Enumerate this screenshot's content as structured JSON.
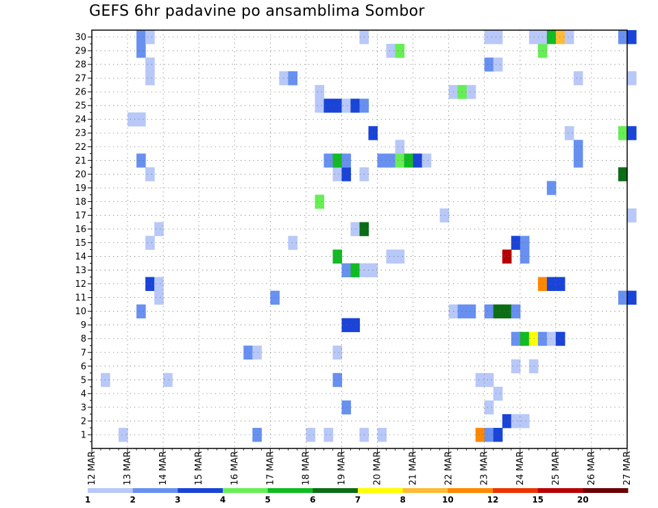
{
  "chart_data": {
    "type": "heatmap",
    "title": "GEFS 6hr padavine po ansamblima Sombor",
    "y_members": [
      1,
      2,
      3,
      4,
      5,
      6,
      7,
      8,
      9,
      10,
      11,
      12,
      13,
      14,
      15,
      16,
      17,
      18,
      19,
      20,
      21,
      22,
      23,
      24,
      25,
      26,
      27,
      28,
      29,
      30
    ],
    "x_ticks": [
      "12 MAR",
      "13 MAR",
      "14 MAR",
      "15 MAR",
      "16 MAR",
      "17 MAR",
      "18 MAR",
      "19 MAR",
      "20 MAR",
      "21 MAR",
      "22 MAR",
      "23 MAR",
      "24 MAR",
      "25 MAR",
      "26 MAR",
      "27 MAR"
    ],
    "x_range_days": [
      12,
      27
    ],
    "grid": true,
    "colorbar": {
      "colors": [
        "#b8c8f8",
        "#6890f0",
        "#1a44d8",
        "#66ee55",
        "#11bb22",
        "#0b6e17",
        "#ffff00",
        "#ffbb33",
        "#ff8800",
        "#ee3300",
        "#b80000",
        "#6a0000"
      ],
      "labels": [
        "1",
        "2",
        "3",
        "4",
        "5",
        "6",
        "7",
        "8",
        "10",
        "12",
        "15",
        "20"
      ]
    },
    "cells": [
      {
        "m": 0,
        "t": 3,
        "v": 1
      },
      {
        "m": 0,
        "t": 18,
        "v": 2
      },
      {
        "m": 0,
        "t": 24,
        "v": 1
      },
      {
        "m": 0,
        "t": 26,
        "v": 1
      },
      {
        "m": 0,
        "t": 30,
        "v": 1
      },
      {
        "m": 0,
        "t": 32,
        "v": 1
      },
      {
        "m": 0,
        "t": 43,
        "v": 10
      },
      {
        "m": 0,
        "t": 44,
        "v": 2
      },
      {
        "m": 0,
        "t": 45,
        "v": 3
      },
      {
        "m": 1,
        "t": 46,
        "v": 3
      },
      {
        "m": 1,
        "t": 47,
        "v": 1
      },
      {
        "m": 1,
        "t": 48,
        "v": 1
      },
      {
        "m": 2,
        "t": 28,
        "v": 2
      },
      {
        "m": 2,
        "t": 44,
        "v": 1
      },
      {
        "m": 3,
        "t": 45,
        "v": 1
      },
      {
        "m": 4,
        "t": 1,
        "v": 1
      },
      {
        "m": 4,
        "t": 8,
        "v": 1
      },
      {
        "m": 4,
        "t": 27,
        "v": 2
      },
      {
        "m": 4,
        "t": 43,
        "v": 1
      },
      {
        "m": 4,
        "t": 44,
        "v": 1
      },
      {
        "m": 5,
        "t": 47,
        "v": 1
      },
      {
        "m": 5,
        "t": 49,
        "v": 1
      },
      {
        "m": 6,
        "t": 17,
        "v": 2
      },
      {
        "m": 6,
        "t": 18,
        "v": 1
      },
      {
        "m": 6,
        "t": 27,
        "v": 1
      },
      {
        "m": 7,
        "t": 47,
        "v": 2
      },
      {
        "m": 7,
        "t": 48,
        "v": 5
      },
      {
        "m": 7,
        "t": 49,
        "v": 7
      },
      {
        "m": 7,
        "t": 50,
        "v": 2
      },
      {
        "m": 7,
        "t": 51,
        "v": 1
      },
      {
        "m": 7,
        "t": 52,
        "v": 3
      },
      {
        "m": 8,
        "t": 28,
        "v": 3
      },
      {
        "m": 8,
        "t": 29,
        "v": 3
      },
      {
        "m": 9,
        "t": 5,
        "v": 2
      },
      {
        "m": 9,
        "t": 40,
        "v": 1
      },
      {
        "m": 9,
        "t": 41,
        "v": 2
      },
      {
        "m": 9,
        "t": 42,
        "v": 2
      },
      {
        "m": 9,
        "t": 44,
        "v": 2
      },
      {
        "m": 9,
        "t": 45,
        "v": 6
      },
      {
        "m": 9,
        "t": 46,
        "v": 6
      },
      {
        "m": 9,
        "t": 47,
        "v": 2
      },
      {
        "m": 10,
        "t": 7,
        "v": 1
      },
      {
        "m": 10,
        "t": 20,
        "v": 2
      },
      {
        "m": 10,
        "t": 59,
        "v": 2
      },
      {
        "m": 10,
        "t": 60,
        "v": 3
      },
      {
        "m": 11,
        "t": 6,
        "v": 3
      },
      {
        "m": 11,
        "t": 7,
        "v": 1
      },
      {
        "m": 11,
        "t": 50,
        "v": 10
      },
      {
        "m": 11,
        "t": 51,
        "v": 3
      },
      {
        "m": 11,
        "t": 52,
        "v": 3
      },
      {
        "m": 12,
        "t": 28,
        "v": 2
      },
      {
        "m": 12,
        "t": 29,
        "v": 5
      },
      {
        "m": 12,
        "t": 30,
        "v": 1
      },
      {
        "m": 12,
        "t": 31,
        "v": 1
      },
      {
        "m": 13,
        "t": 27,
        "v": 5
      },
      {
        "m": 13,
        "t": 33,
        "v": 1
      },
      {
        "m": 13,
        "t": 34,
        "v": 1
      },
      {
        "m": 13,
        "t": 46,
        "v": 15
      },
      {
        "m": 13,
        "t": 48,
        "v": 2
      },
      {
        "m": 14,
        "t": 6,
        "v": 1
      },
      {
        "m": 14,
        "t": 22,
        "v": 1
      },
      {
        "m": 14,
        "t": 47,
        "v": 3
      },
      {
        "m": 14,
        "t": 48,
        "v": 2
      },
      {
        "m": 15,
        "t": 7,
        "v": 1
      },
      {
        "m": 15,
        "t": 29,
        "v": 1
      },
      {
        "m": 15,
        "t": 30,
        "v": 6
      },
      {
        "m": 16,
        "t": 39,
        "v": 1
      },
      {
        "m": 16,
        "t": 60,
        "v": 1
      },
      {
        "m": 17,
        "t": 25,
        "v": 4
      },
      {
        "m": 18,
        "t": 51,
        "v": 2
      },
      {
        "m": 19,
        "t": 6,
        "v": 1
      },
      {
        "m": 19,
        "t": 27,
        "v": 1
      },
      {
        "m": 19,
        "t": 28,
        "v": 3
      },
      {
        "m": 19,
        "t": 30,
        "v": 1
      },
      {
        "m": 19,
        "t": 59,
        "v": 6
      },
      {
        "m": 20,
        "t": 5,
        "v": 2
      },
      {
        "m": 20,
        "t": 26,
        "v": 2
      },
      {
        "m": 20,
        "t": 27,
        "v": 5
      },
      {
        "m": 20,
        "t": 28,
        "v": 2
      },
      {
        "m": 20,
        "t": 32,
        "v": 2
      },
      {
        "m": 20,
        "t": 33,
        "v": 2
      },
      {
        "m": 20,
        "t": 34,
        "v": 4
      },
      {
        "m": 20,
        "t": 35,
        "v": 5
      },
      {
        "m": 20,
        "t": 36,
        "v": 3
      },
      {
        "m": 20,
        "t": 37,
        "v": 1
      },
      {
        "m": 20,
        "t": 54,
        "v": 2
      },
      {
        "m": 21,
        "t": 34,
        "v": 1
      },
      {
        "m": 21,
        "t": 54,
        "v": 2
      },
      {
        "m": 22,
        "t": 31,
        "v": 3
      },
      {
        "m": 22,
        "t": 53,
        "v": 1
      },
      {
        "m": 22,
        "t": 59,
        "v": 4
      },
      {
        "m": 22,
        "t": 60,
        "v": 3
      },
      {
        "m": 23,
        "t": 4,
        "v": 1
      },
      {
        "m": 23,
        "t": 5,
        "v": 1
      },
      {
        "m": 24,
        "t": 25,
        "v": 1
      },
      {
        "m": 24,
        "t": 26,
        "v": 3
      },
      {
        "m": 24,
        "t": 27,
        "v": 3
      },
      {
        "m": 24,
        "t": 28,
        "v": 1
      },
      {
        "m": 24,
        "t": 29,
        "v": 3
      },
      {
        "m": 24,
        "t": 30,
        "v": 2
      },
      {
        "m": 25,
        "t": 25,
        "v": 1
      },
      {
        "m": 25,
        "t": 40,
        "v": 1
      },
      {
        "m": 25,
        "t": 41,
        "v": 4
      },
      {
        "m": 25,
        "t": 42,
        "v": 1
      },
      {
        "m": 26,
        "t": 6,
        "v": 1
      },
      {
        "m": 26,
        "t": 21,
        "v": 1
      },
      {
        "m": 26,
        "t": 22,
        "v": 2
      },
      {
        "m": 26,
        "t": 54,
        "v": 1
      },
      {
        "m": 26,
        "t": 60,
        "v": 1
      },
      {
        "m": 27,
        "t": 6,
        "v": 1
      },
      {
        "m": 27,
        "t": 44,
        "v": 2
      },
      {
        "m": 27,
        "t": 45,
        "v": 1
      },
      {
        "m": 28,
        "t": 5,
        "v": 2
      },
      {
        "m": 28,
        "t": 33,
        "v": 1
      },
      {
        "m": 28,
        "t": 34,
        "v": 4
      },
      {
        "m": 28,
        "t": 50,
        "v": 4
      },
      {
        "m": 29,
        "t": 5,
        "v": 2
      },
      {
        "m": 29,
        "t": 6,
        "v": 1
      },
      {
        "m": 29,
        "t": 30,
        "v": 1
      },
      {
        "m": 29,
        "t": 44,
        "v": 1
      },
      {
        "m": 29,
        "t": 45,
        "v": 1
      },
      {
        "m": 29,
        "t": 49,
        "v": 1
      },
      {
        "m": 29,
        "t": 50,
        "v": 1
      },
      {
        "m": 29,
        "t": 51,
        "v": 5
      },
      {
        "m": 29,
        "t": 52,
        "v": 8
      },
      {
        "m": 29,
        "t": 53,
        "v": 1
      },
      {
        "m": 29,
        "t": 59,
        "v": 2
      },
      {
        "m": 29,
        "t": 60,
        "v": 3
      }
    ]
  }
}
